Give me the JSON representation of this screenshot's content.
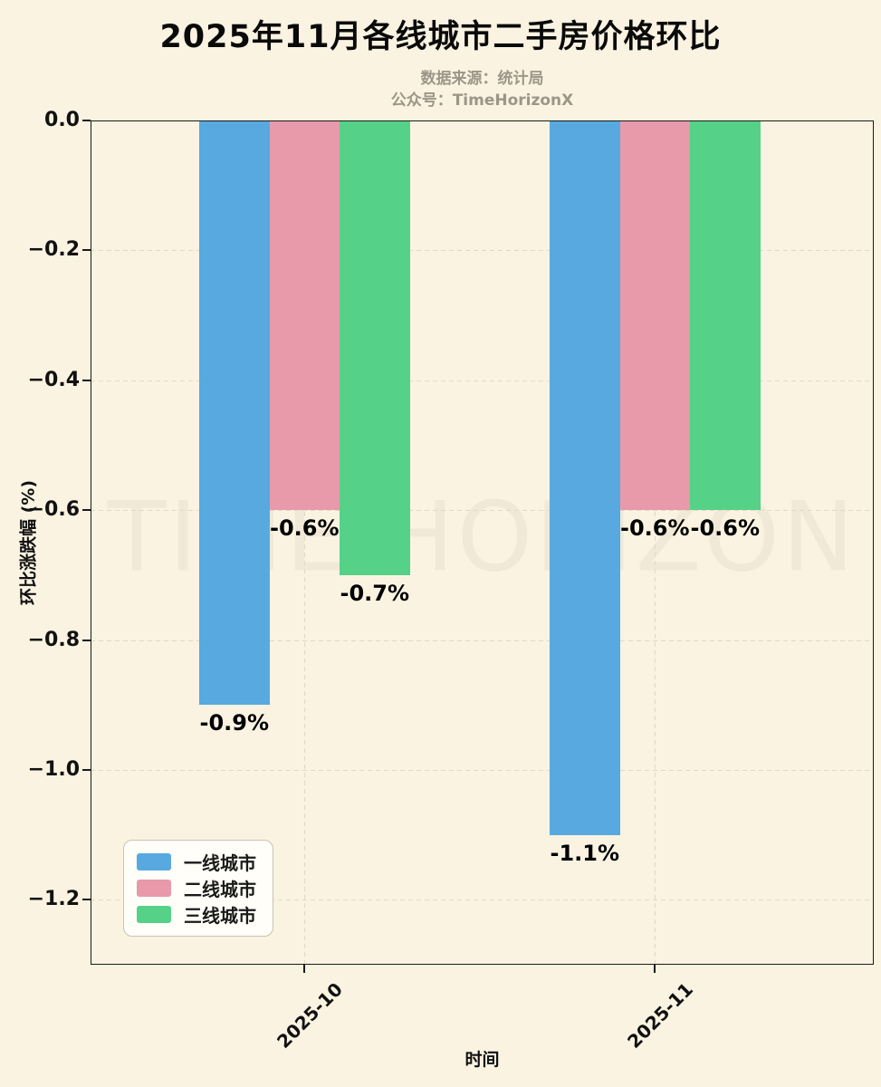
{
  "header": {
    "title": "2025年11月各线城市二手房价格环比",
    "subtitle_line1": "数据来源：统计局",
    "subtitle_line2": "公众号：TimeHorizonX"
  },
  "watermark": "TIME HORIZON",
  "chart_data": {
    "type": "bar",
    "title": "2025年11月各线城市二手房价格环比",
    "categories": [
      "2025-10",
      "2025-11"
    ],
    "series": [
      {
        "name": "一线城市",
        "color": "#58a9e0",
        "values": [
          -0.9,
          -1.1
        ],
        "labels": [
          "-0.9%",
          "-1.1%"
        ]
      },
      {
        "name": "二线城市",
        "color": "#e899aa",
        "values": [
          -0.6,
          -0.6
        ],
        "labels": [
          "-0.6%",
          "-0.6%"
        ]
      },
      {
        "name": "三线城市",
        "color": "#55d288",
        "values": [
          -0.7,
          -0.6
        ],
        "labels": [
          "-0.7%",
          "-0.6%"
        ]
      }
    ],
    "xlabel": "时间",
    "ylabel": "环比涨跌幅 (%)",
    "ylim": [
      -1.3,
      0
    ],
    "yticks": [
      0.0,
      -0.2,
      -0.4,
      -0.6,
      -0.8,
      -1.0,
      -1.2
    ],
    "ytick_labels": [
      "0.0",
      "−0.2",
      "−0.4",
      "−0.6",
      "−0.8",
      "−1.0",
      "−1.2"
    ],
    "grid": "dashed",
    "legend_position": "lower left"
  },
  "colors": {
    "background": "#faf3e1",
    "grid": "#e2d9c4",
    "spine": "#1a1a1a",
    "subtitle": "#9c9689",
    "watermark": "#f0e9d7"
  }
}
